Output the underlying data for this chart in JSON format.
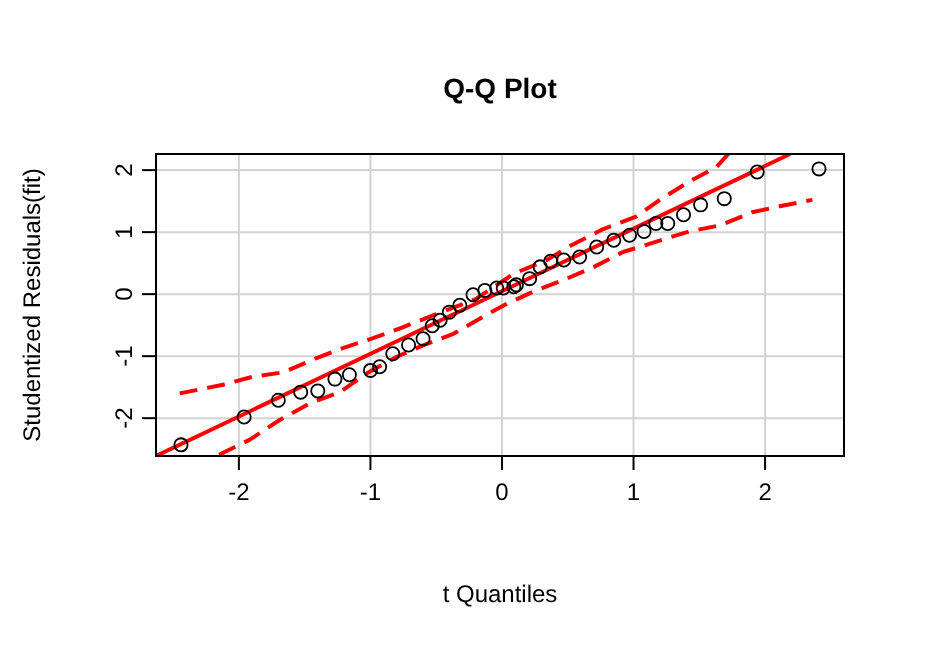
{
  "chart_data": {
    "type": "scatter",
    "title": "Q-Q Plot",
    "xlabel": "t Quantiles",
    "ylabel": "Studentized Residuals(fit)",
    "xlim": [
      -2.63,
      2.6
    ],
    "ylim": [
      -2.61,
      2.26
    ],
    "xticks": [
      -2,
      -1,
      0,
      1,
      2
    ],
    "yticks": [
      -2,
      -1,
      0,
      1,
      2
    ],
    "grid": true,
    "series": [
      {
        "color": "#000000",
        "marker": "circle",
        "x": [
          -2.44,
          -1.96,
          -1.7,
          -1.53,
          -1.4,
          -1.27,
          -1.16,
          -1.0,
          -0.93,
          -0.83,
          -0.71,
          -0.6,
          -0.53,
          -0.47,
          -0.4,
          -0.32,
          -0.22,
          -0.13,
          -0.04,
          0.01,
          0.09,
          0.11,
          0.21,
          0.29,
          0.37,
          0.47,
          0.59,
          0.72,
          0.85,
          0.97,
          1.08,
          1.17,
          1.26,
          1.38,
          1.51,
          1.69,
          1.94,
          2.41
        ],
        "values": [
          -2.43,
          -1.98,
          -1.71,
          -1.58,
          -1.56,
          -1.37,
          -1.3,
          -1.23,
          -1.17,
          -0.96,
          -0.82,
          -0.72,
          -0.51,
          -0.42,
          -0.29,
          -0.18,
          -0.01,
          0.06,
          0.1,
          0.1,
          0.12,
          0.15,
          0.25,
          0.44,
          0.53,
          0.55,
          0.6,
          0.76,
          0.87,
          0.95,
          1.01,
          1.14,
          1.14,
          1.28,
          1.44,
          1.54,
          1.97,
          2.02
        ]
      },
      {
        "type": "line",
        "color": "#ff0000",
        "line_style": "solid",
        "x": [
          -2.63,
          2.19
        ],
        "values": [
          -2.61,
          2.26
        ]
      },
      {
        "type": "line",
        "color": "#ff0000",
        "line_style": "dashed",
        "x": [
          -2.45,
          -2.12,
          -1.89,
          -1.66,
          -1.41,
          -1.21,
          -0.98,
          -0.75,
          -0.52,
          -0.2,
          0.09,
          0.34,
          0.52,
          0.77,
          1.02,
          1.2,
          1.42,
          1.63,
          1.72
        ],
        "values": [
          -1.6,
          -1.46,
          -1.33,
          -1.26,
          -1.03,
          -0.87,
          -0.71,
          -0.53,
          -0.34,
          -0.08,
          0.33,
          0.55,
          0.78,
          1.05,
          1.25,
          1.52,
          1.81,
          2.05,
          2.26
        ]
      },
      {
        "type": "line",
        "color": "#ff0000",
        "line_style": "dashed",
        "x": [
          -2.15,
          -1.92,
          -1.69,
          -1.46,
          -1.23,
          -1.03,
          -0.8,
          -0.57,
          -0.37,
          -0.14,
          0.04,
          0.26,
          0.47,
          0.7,
          0.92,
          1.18,
          1.42,
          1.66,
          1.9,
          2.14,
          2.36
        ],
        "values": [
          -2.59,
          -2.35,
          -2.03,
          -1.76,
          -1.58,
          -1.28,
          -1.01,
          -0.8,
          -0.64,
          -0.36,
          -0.15,
          0.06,
          0.23,
          0.44,
          0.68,
          0.85,
          1.01,
          1.11,
          1.32,
          1.43,
          1.52
        ]
      }
    ]
  }
}
